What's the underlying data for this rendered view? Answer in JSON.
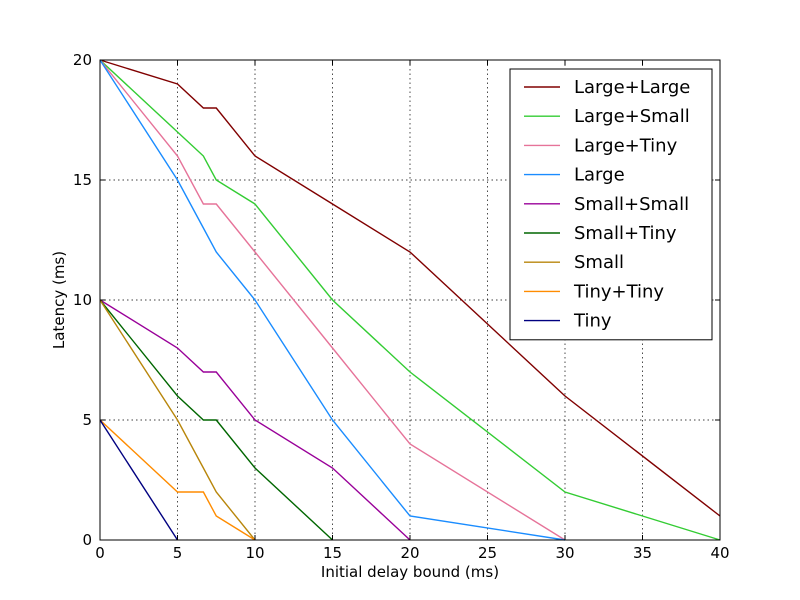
{
  "chart_data": {
    "type": "line",
    "xlabel": "Initial delay bound (ms)",
    "ylabel": "Latency (ms)",
    "xlim": [
      0,
      40
    ],
    "ylim": [
      0,
      20
    ],
    "xticks": [
      0,
      5,
      10,
      15,
      20,
      25,
      30,
      35,
      40
    ],
    "yticks": [
      0,
      5,
      10,
      15,
      20
    ],
    "xtick_labels": [
      "0",
      "5",
      "10",
      "15",
      "20",
      "25",
      "30",
      "35",
      "40"
    ],
    "ytick_labels": [
      "0",
      "5",
      "10",
      "15",
      "20"
    ],
    "grid": true,
    "legend_position": "top-right",
    "series": [
      {
        "name": "Large+Large",
        "color": "#800000",
        "x": [
          0,
          5,
          6.67,
          7.5,
          10,
          15,
          20,
          30,
          40
        ],
        "y": [
          20,
          19,
          18,
          18,
          16,
          14,
          12,
          6,
          1
        ]
      },
      {
        "name": "Large+Small",
        "color": "#33cc33",
        "x": [
          0,
          5,
          6.67,
          7.5,
          10,
          15,
          20,
          30,
          40
        ],
        "y": [
          20,
          17,
          16,
          15,
          14,
          10,
          7,
          2,
          0
        ]
      },
      {
        "name": "Large+Tiny",
        "color": "#e67399",
        "x": [
          0,
          5,
          6.67,
          7.5,
          10,
          15,
          20,
          30
        ],
        "y": [
          20,
          16,
          14,
          14,
          12,
          8,
          4,
          0
        ]
      },
      {
        "name": "Large",
        "color": "#1a8cff",
        "x": [
          0,
          5,
          6.67,
          7.5,
          10,
          15,
          20,
          30
        ],
        "y": [
          20,
          15,
          13,
          12,
          10,
          5,
          1,
          0
        ]
      },
      {
        "name": "Small+Small",
        "color": "#990099",
        "x": [
          0,
          5,
          6.67,
          7.5,
          10,
          15,
          20
        ],
        "y": [
          10,
          8,
          7,
          7,
          5,
          3,
          0
        ]
      },
      {
        "name": "Small+Tiny",
        "color": "#006600",
        "x": [
          0,
          5,
          6.67,
          7.5,
          10,
          15
        ],
        "y": [
          10,
          6,
          5,
          5,
          3,
          0
        ]
      },
      {
        "name": "Small",
        "color": "#b8860b",
        "x": [
          0,
          5,
          6.67,
          7.5,
          10
        ],
        "y": [
          10,
          5,
          3,
          2,
          0
        ]
      },
      {
        "name": "Tiny+Tiny",
        "color": "#ff8c00",
        "x": [
          0,
          5,
          6.67,
          7.5,
          10
        ],
        "y": [
          5,
          2,
          2,
          1,
          0
        ]
      },
      {
        "name": "Tiny",
        "color": "#000080",
        "x": [
          0,
          5
        ],
        "y": [
          5,
          0
        ]
      }
    ]
  }
}
